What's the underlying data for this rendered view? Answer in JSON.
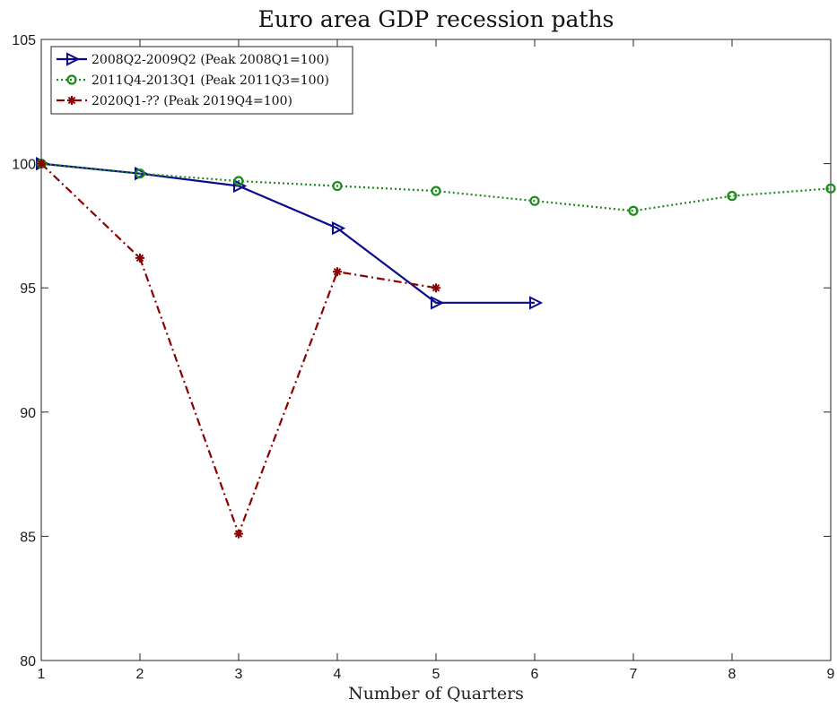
{
  "chart_data": {
    "type": "line",
    "title": "Euro area GDP recession paths",
    "xlabel": "Number of Quarters",
    "ylabel": "",
    "xlim": [
      1,
      9
    ],
    "ylim": [
      80,
      105
    ],
    "xticks": [
      "1",
      "2",
      "3",
      "4",
      "5",
      "6",
      "7",
      "8",
      "9"
    ],
    "yticks": [
      "80",
      "85",
      "90",
      "95",
      "100",
      "105"
    ],
    "grid": false,
    "legend_position": "top-left",
    "series": [
      {
        "name": "2008Q2-2009Q2 (Peak 2008Q1=100)",
        "color": "#0a0a8c",
        "line_style": "solid",
        "marker": "triangle-right",
        "x": [
          1,
          2,
          3,
          4,
          5,
          6
        ],
        "values": [
          100,
          99.6,
          99.1,
          97.4,
          94.4,
          94.4
        ]
      },
      {
        "name": "2011Q4-2013Q1 (Peak 2011Q3=100)",
        "color": "#1a8c1a",
        "line_style": "dotted",
        "marker": "circle",
        "x": [
          1,
          2,
          3,
          4,
          5,
          6,
          7,
          8,
          9
        ],
        "values": [
          100,
          99.6,
          99.3,
          99.1,
          98.9,
          98.5,
          98.1,
          98.7,
          99.0
        ]
      },
      {
        "name": "2020Q1-?? (Peak 2019Q4=100)",
        "color": "#8b0000",
        "line_style": "dash-dot",
        "marker": "star",
        "x": [
          1,
          2,
          3,
          4,
          5
        ],
        "values": [
          100,
          96.2,
          85.1,
          95.65,
          95.0
        ]
      }
    ]
  }
}
